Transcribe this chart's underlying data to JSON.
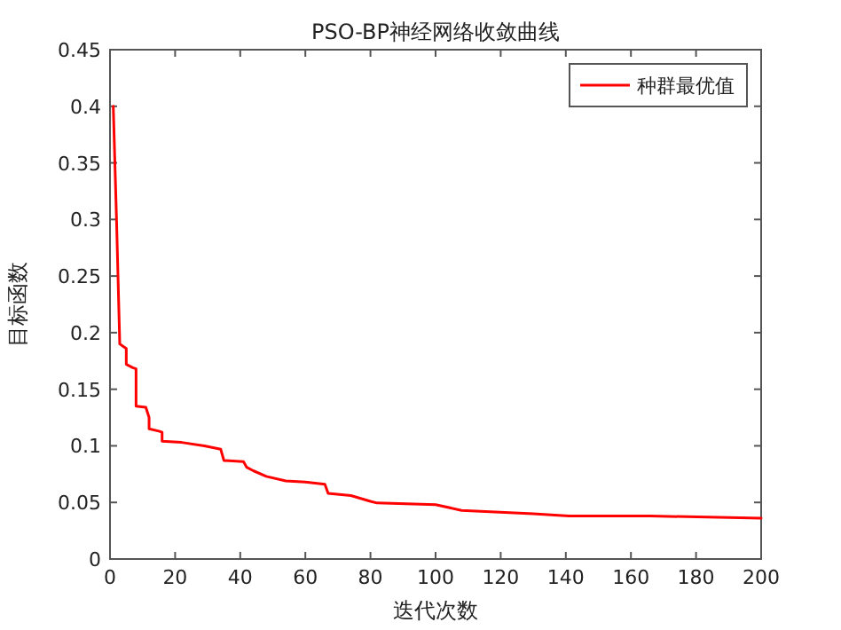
{
  "chart_data": {
    "type": "line",
    "title": "PSO-BP神经网络收敛曲线",
    "xlabel": "迭代次数",
    "ylabel": "目标函数",
    "x": [
      1,
      2,
      3,
      4,
      5,
      5,
      7,
      8,
      8,
      11,
      12,
      12,
      15,
      16,
      16,
      22,
      29,
      34,
      35,
      41,
      42,
      44,
      48,
      54,
      60,
      66,
      67,
      74,
      80,
      82,
      100,
      108,
      130,
      141,
      166,
      200
    ],
    "series": [
      {
        "name": "种群最优值",
        "color": "#ff0000",
        "values": [
          0.4,
          0.3,
          0.19,
          0.188,
          0.186,
          0.172,
          0.169,
          0.168,
          0.135,
          0.134,
          0.125,
          0.115,
          0.113,
          0.112,
          0.104,
          0.103,
          0.1,
          0.097,
          0.087,
          0.086,
          0.081,
          0.078,
          0.073,
          0.069,
          0.068,
          0.066,
          0.058,
          0.056,
          0.051,
          0.0495,
          0.048,
          0.043,
          0.04,
          0.038,
          0.038,
          0.036
        ]
      }
    ],
    "xlim": [
      0,
      200
    ],
    "ylim": [
      0,
      0.45
    ],
    "xticks": [
      0,
      20,
      40,
      60,
      80,
      100,
      120,
      140,
      160,
      180,
      200
    ],
    "yticks": [
      0,
      0.05,
      0.1,
      0.15,
      0.2,
      0.25,
      0.3,
      0.35,
      0.4,
      0.45
    ],
    "legend": "top right",
    "grid": false,
    "marker": "none",
    "line_style": "solid"
  }
}
